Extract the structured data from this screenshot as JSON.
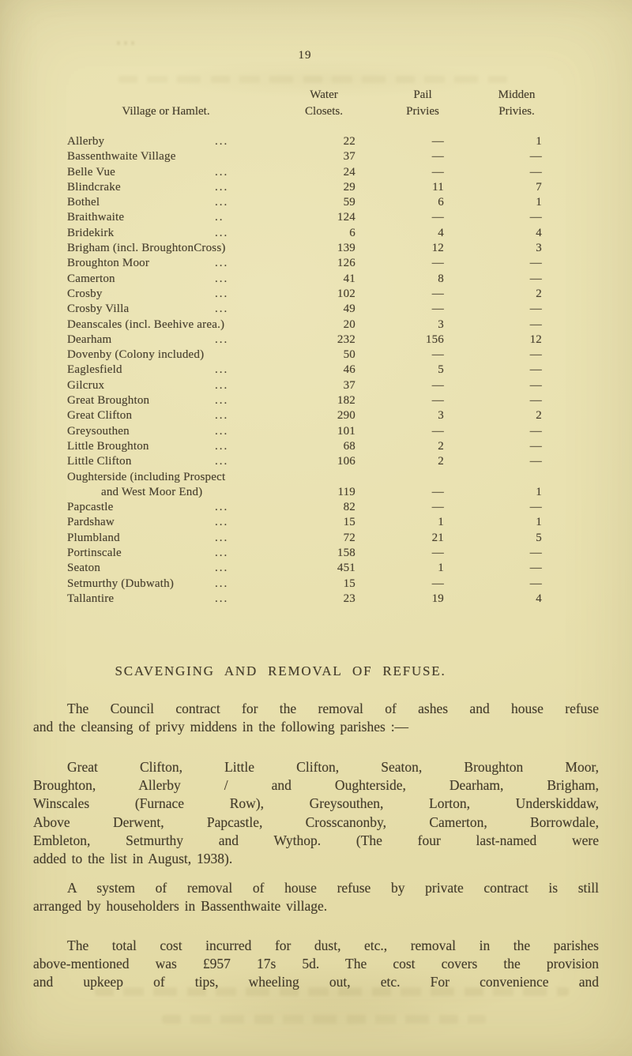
{
  "page": {
    "number": "19",
    "paper_color": "#e8e0ae",
    "ink_color": "#48402f"
  },
  "table": {
    "headers": {
      "village": "Village or Hamlet.",
      "water_1": "Water",
      "water_2": "Closets.",
      "pail_1": "Pail",
      "pail_2": "Privies",
      "midden_1": "Midden",
      "midden_2": "Privies."
    },
    "rows": [
      {
        "name": "Allerby",
        "dots": "...",
        "wc": "22",
        "pail": "—",
        "midden": "1"
      },
      {
        "name": "Bassenthwaite Village",
        "dots": "",
        "wc": "37",
        "pail": "—",
        "midden": "—"
      },
      {
        "name": "Belle Vue",
        "dots": "...",
        "wc": "24",
        "pail": "—",
        "midden": "—"
      },
      {
        "name": "Blindcrake",
        "dots": "...",
        "wc": "29",
        "pail": "11",
        "midden": "7"
      },
      {
        "name": "Bothel",
        "dots": "...",
        "wc": "59",
        "pail": "6",
        "midden": "1"
      },
      {
        "name": "Braithwaite",
        "dots": "..",
        "wc": "124",
        "pail": "—",
        "midden": "—"
      },
      {
        "name": "Bridekirk",
        "dots": "...",
        "wc": "6",
        "pail": "4",
        "midden": "4"
      },
      {
        "name": "Brigham (incl. BroughtonCross)",
        "dots": "",
        "wc": "139",
        "pail": "12",
        "midden": "3"
      },
      {
        "name": "Broughton Moor",
        "dots": "...",
        "wc": "126",
        "pail": "—",
        "midden": "—"
      },
      {
        "name": "Camerton",
        "dots": "...",
        "wc": "41",
        "pail": "8",
        "midden": "—"
      },
      {
        "name": "Crosby",
        "dots": "...",
        "wc": "102",
        "pail": "—",
        "midden": "2"
      },
      {
        "name": "Crosby Villa",
        "dots": "...",
        "wc": "49",
        "pail": "—",
        "midden": "—"
      },
      {
        "name": "Deanscales (incl. Beehive area.)",
        "dots": "",
        "wc": "20",
        "pail": "3",
        "midden": "—"
      },
      {
        "name": "Dearham",
        "dots": "...",
        "wc": "232",
        "pail": "156",
        "midden": "12"
      },
      {
        "name": "Dovenby (Colony included)",
        "dots": "",
        "wc": "50",
        "pail": "—",
        "midden": "—"
      },
      {
        "name": "Eaglesfield",
        "dots": "...",
        "wc": "46",
        "pail": "5",
        "midden": "—"
      },
      {
        "name": "Gilcrux",
        "dots": "...",
        "wc": "37",
        "pail": "—",
        "midden": "—"
      },
      {
        "name": "Great Broughton",
        "dots": "...",
        "wc": "182",
        "pail": "—",
        "midden": "—"
      },
      {
        "name": "Great Clifton",
        "dots": "...",
        "wc": "290",
        "pail": "3",
        "midden": "2"
      },
      {
        "name": "Greysouthen",
        "dots": "...",
        "wc": "101",
        "pail": "—",
        "midden": "—"
      },
      {
        "name": "Little Broughton",
        "dots": "...",
        "wc": "68",
        "pail": "2",
        "midden": "—"
      },
      {
        "name": "Little Clifton",
        "dots": "...",
        "wc": "106",
        "pail": "2",
        "midden": "—"
      },
      {
        "name": "Oughterside (including Prospect",
        "name2": "and West Moor End)",
        "dots": "",
        "wc": "119",
        "pail": "—",
        "midden": "1"
      },
      {
        "name": "Papcastle",
        "dots": "...",
        "wc": "82",
        "pail": "—",
        "midden": "—"
      },
      {
        "name": "Pardshaw",
        "dots": "...",
        "wc": "15",
        "pail": "1",
        "midden": "1"
      },
      {
        "name": "Plumbland",
        "dots": "...",
        "wc": "72",
        "pail": "21",
        "midden": "5"
      },
      {
        "name": "Portinscale",
        "dots": "...",
        "wc": "158",
        "pail": "—",
        "midden": "—"
      },
      {
        "name": "Seaton",
        "dots": "...",
        "wc": "451",
        "pail": "1",
        "midden": "—"
      },
      {
        "name": "Setmurthy (Dubwath)",
        "dots": "...",
        "wc": "15",
        "pail": "—",
        "midden": "—"
      },
      {
        "name": "Tallantire",
        "dots": "...",
        "wc": "23",
        "pail": "19",
        "midden": "4"
      }
    ]
  },
  "section": {
    "heading": "SCAVENGING AND REMOVAL OF REFUSE.",
    "paragraphs": [
      {
        "lines": [
          "The Council contract for the removal of ashes and house refuse",
          "and the cleansing of privy middens in the following parishes :—"
        ]
      },
      {
        "lines": [
          "Great Clifton, Little Clifton, Seaton, Broughton Moor,",
          "Broughton, Allerby / and Oughterside, Dearham, Brigham,",
          "Winscales (Furnace Row), Greysouthen, Lorton, Underskiddaw,",
          "Above Derwent, Papcastle, Crosscanonby, Camerton, Borrowdale,",
          "Embleton, Setmurthy and Wythop. (The four last-named were",
          "added to the list in August, 1938)."
        ]
      },
      {
        "lines": [
          "A system of removal of house refuse by private contract is still",
          "arranged by householders in Bassenthwaite village."
        ]
      },
      {
        "lines": [
          "The total cost incurred for dust, etc., removal in the parishes",
          "above-mentioned was £957 17s 5d.  The cost covers the provision",
          "and upkeep of tips, wheeling out, etc. For convenience and"
        ]
      }
    ]
  }
}
